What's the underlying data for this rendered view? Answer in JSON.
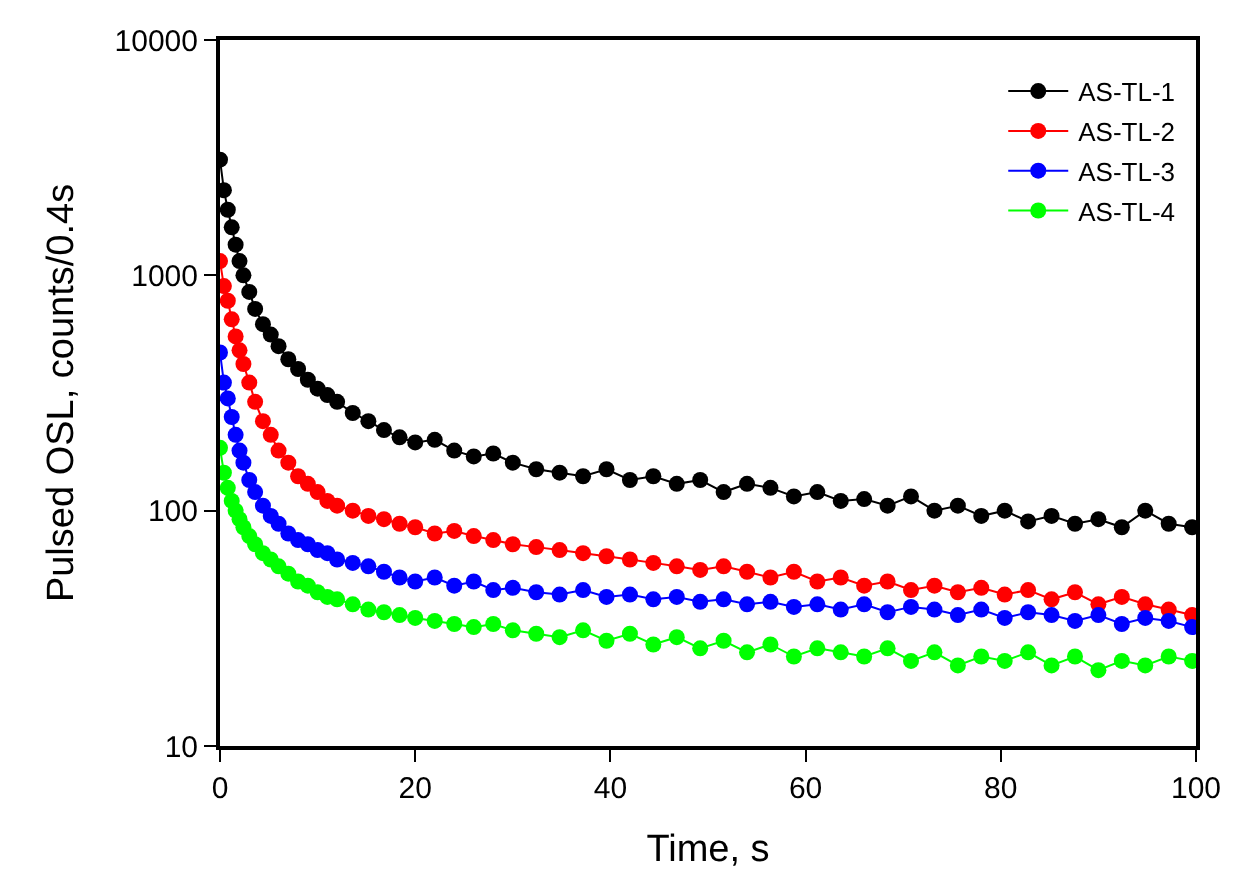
{
  "chart_data": {
    "type": "line",
    "xlabel": "Time, s",
    "ylabel": "Pulsed OSL, counts/0.4s",
    "x": [
      0,
      0.4,
      0.8,
      1.2,
      1.6,
      2,
      2.4,
      3,
      3.6,
      4.4,
      5.2,
      6,
      7,
      8,
      9,
      10,
      11,
      12,
      13.6,
      15.2,
      16.8,
      18.4,
      20,
      22,
      24,
      26,
      28,
      30,
      32.4,
      34.8,
      37.2,
      39.6,
      42,
      44.4,
      46.8,
      49.2,
      51.6,
      54,
      56.4,
      58.8,
      61.2,
      63.6,
      66,
      68.4,
      70.8,
      73.2,
      75.6,
      78,
      80.4,
      82.8,
      85.2,
      87.6,
      90,
      92.4,
      94.8,
      97.2,
      99.6
    ],
    "series": [
      {
        "name": "AS-TL-1",
        "color": "#000000",
        "values": [
          3100,
          2300,
          1900,
          1600,
          1350,
          1150,
          1000,
          850,
          720,
          620,
          560,
          500,
          440,
          400,
          360,
          330,
          310,
          290,
          260,
          240,
          220,
          205,
          195,
          200,
          180,
          170,
          175,
          160,
          150,
          145,
          140,
          150,
          135,
          140,
          130,
          135,
          120,
          130,
          125,
          115,
          120,
          110,
          112,
          105,
          115,
          100,
          105,
          95,
          100,
          90,
          95,
          88,
          92,
          85,
          100,
          88,
          85
        ]
      },
      {
        "name": "AS-TL-2",
        "color": "#ff0000",
        "values": [
          1150,
          900,
          780,
          650,
          550,
          480,
          420,
          350,
          290,
          240,
          210,
          180,
          160,
          140,
          130,
          120,
          110,
          105,
          100,
          95,
          92,
          88,
          85,
          80,
          82,
          78,
          75,
          72,
          70,
          68,
          66,
          64,
          62,
          60,
          58,
          56,
          58,
          55,
          52,
          55,
          50,
          52,
          48,
          50,
          46,
          48,
          45,
          47,
          44,
          46,
          42,
          45,
          40,
          43,
          40,
          38,
          36
        ]
      },
      {
        "name": "AS-TL-3",
        "color": "#0000ff",
        "values": [
          470,
          350,
          300,
          250,
          210,
          180,
          160,
          135,
          120,
          105,
          95,
          88,
          80,
          75,
          72,
          68,
          66,
          62,
          60,
          58,
          55,
          52,
          50,
          52,
          48,
          50,
          46,
          47,
          45,
          44,
          46,
          43,
          44,
          42,
          43,
          41,
          42,
          40,
          41,
          39,
          40,
          38,
          40,
          37,
          39,
          38,
          36,
          38,
          35,
          37,
          36,
          34,
          36,
          33,
          35,
          34,
          32
        ]
      },
      {
        "name": "AS-TL-4",
        "color": "#00ff00",
        "values": [
          185,
          145,
          125,
          110,
          100,
          92,
          85,
          78,
          72,
          66,
          62,
          58,
          54,
          50,
          48,
          45,
          43,
          42,
          40,
          38,
          37,
          36,
          35,
          34,
          33,
          32,
          33,
          31,
          30,
          29,
          31,
          28,
          30,
          27,
          29,
          26,
          28,
          25,
          27,
          24,
          26,
          25,
          24,
          26,
          23,
          25,
          22,
          24,
          23,
          25,
          22,
          24,
          21,
          23,
          22,
          24,
          23
        ]
      }
    ],
    "log": "y",
    "xlim": [
      0,
      100
    ],
    "xticks": [
      0,
      20,
      40,
      60,
      80,
      100
    ],
    "ylim": [
      10,
      10000
    ],
    "yticks": [
      10,
      100,
      1000,
      10000
    ],
    "legend": "top right",
    "marker": "circle",
    "line_style": "solid"
  }
}
